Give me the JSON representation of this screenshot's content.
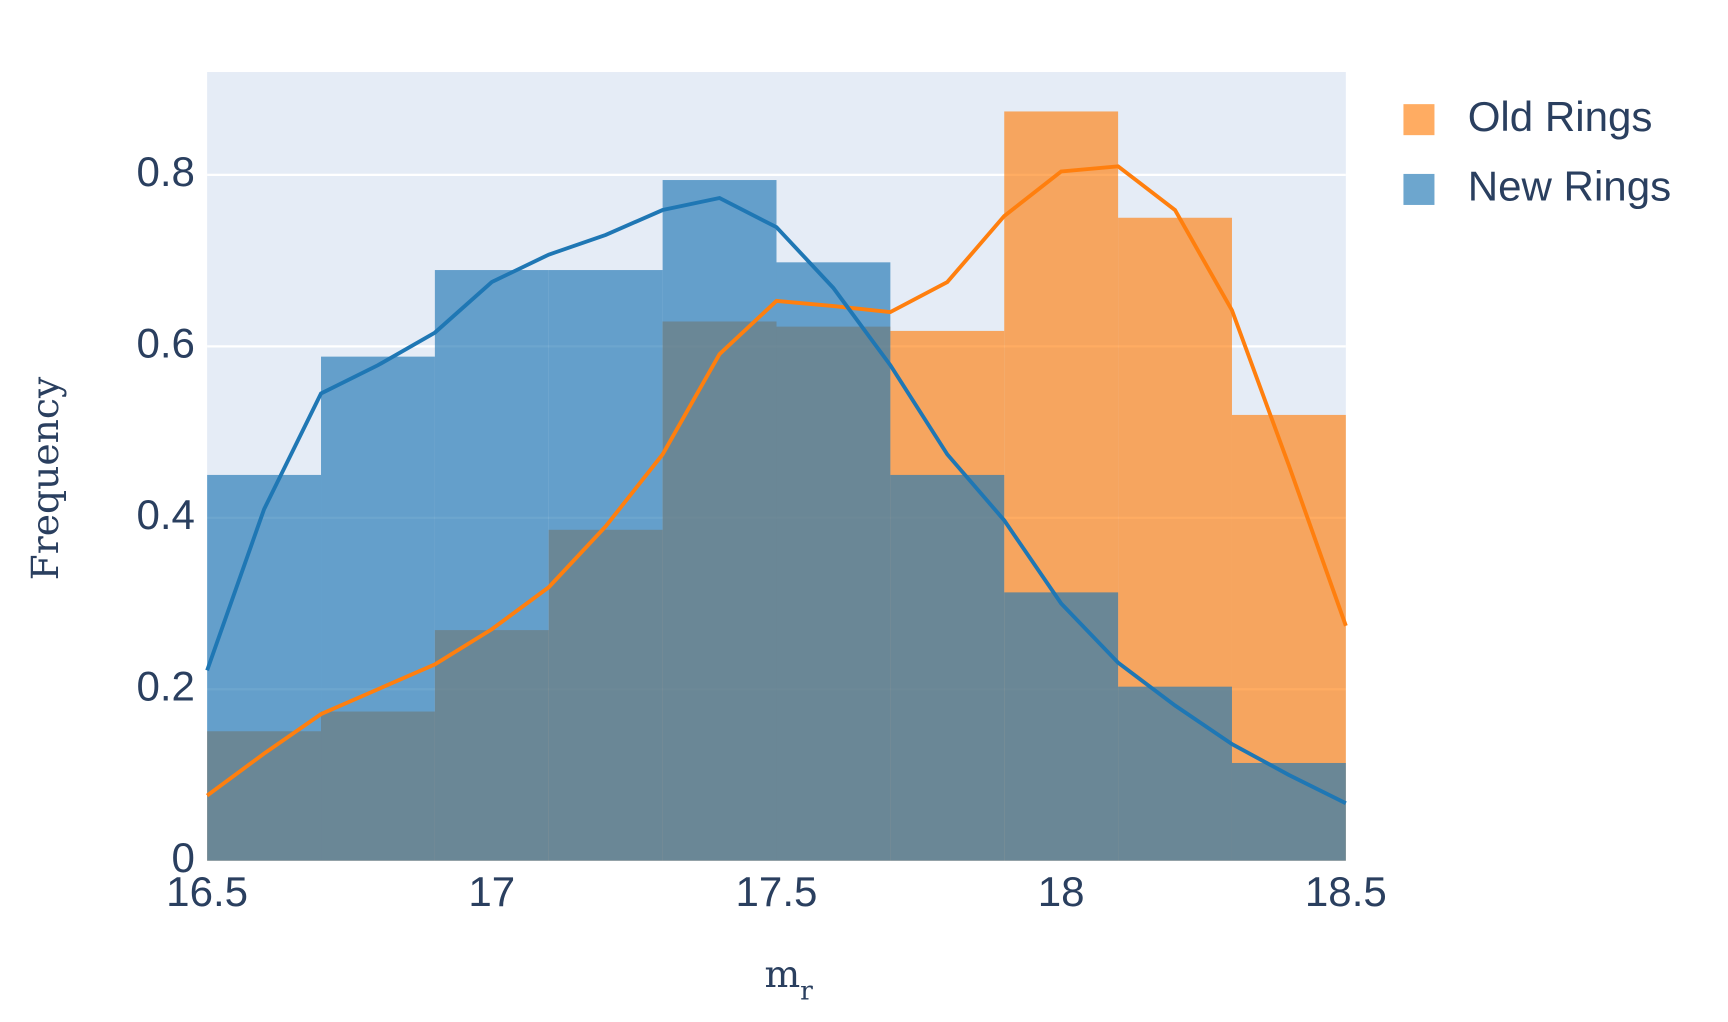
{
  "chart_data": {
    "type": "histogram",
    "x_label": "m",
    "x_label_sub": "r",
    "y_label": "Frequency",
    "xlim": [
      16.5,
      18.5
    ],
    "ylim": [
      0,
      0.92
    ],
    "xticks": [
      16.5,
      17,
      17.5,
      18,
      18.5
    ],
    "yticks": [
      0,
      0.2,
      0.4,
      0.6,
      0.8
    ],
    "grid": true,
    "legend": "right",
    "opacity": 0.65,
    "kde_x": [
      16.5,
      16.6,
      16.7,
      16.8,
      16.9,
      17.0,
      17.1,
      17.2,
      17.3,
      17.4,
      17.5,
      17.6,
      17.7,
      17.8,
      17.9,
      18.0,
      18.1,
      18.2,
      18.3,
      18.4,
      18.5
    ],
    "series": [
      {
        "name": "Old Rings",
        "color": "#ff7f0e",
        "bins": [
          16.5,
          16.7,
          16.9,
          17.1,
          17.3,
          17.5,
          17.7,
          17.9,
          18.1,
          18.3,
          18.5
        ],
        "values": [
          0.151,
          0.174,
          0.269,
          0.386,
          0.629,
          0.623,
          0.618,
          0.874,
          0.75,
          0.52
        ],
        "kde": [
          0.076,
          0.125,
          0.171,
          0.2,
          0.229,
          0.27,
          0.319,
          0.39,
          0.474,
          0.591,
          0.653,
          0.647,
          0.64,
          0.675,
          0.752,
          0.804,
          0.81,
          0.759,
          0.642,
          0.461,
          0.274
        ]
      },
      {
        "name": "New Rings",
        "color": "#1f77b4",
        "bins": [
          16.5,
          16.7,
          16.9,
          17.1,
          17.3,
          17.5,
          17.7,
          17.9,
          18.1,
          18.3,
          18.5
        ],
        "values": [
          0.45,
          0.588,
          0.689,
          0.689,
          0.794,
          0.698,
          0.45,
          0.313,
          0.203,
          0.114
        ],
        "kde": [
          0.222,
          0.41,
          0.545,
          0.578,
          0.616,
          0.675,
          0.707,
          0.73,
          0.759,
          0.773,
          0.739,
          0.668,
          0.578,
          0.474,
          0.397,
          0.3,
          0.231,
          0.181,
          0.136,
          0.1,
          0.067
        ]
      }
    ]
  }
}
